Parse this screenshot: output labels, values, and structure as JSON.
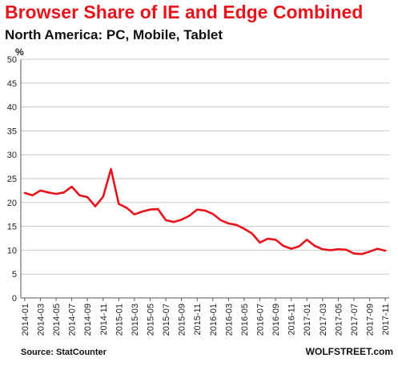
{
  "header": {
    "title": "Browser Share of IE and Edge Combined",
    "subtitle": "North America: PC, Mobile, Tablet"
  },
  "footer": {
    "source": "Source: StatCounter",
    "brand": "WOLFSTREET.com"
  },
  "chart_data": {
    "type": "line",
    "title": "Browser Share of IE and Edge Combined",
    "subtitle": "North America: PC, Mobile, Tablet",
    "ylabel": "%",
    "xlabel": "",
    "ylim": [
      0,
      50
    ],
    "yticks": [
      0,
      5,
      10,
      15,
      20,
      25,
      30,
      35,
      40,
      45,
      50
    ],
    "grid": true,
    "legend": "none",
    "line_color": "#e8141b",
    "x": [
      "2014-01",
      "2014-02",
      "2014-03",
      "2014-04",
      "2014-05",
      "2014-06",
      "2014-07",
      "2014-08",
      "2014-09",
      "2014-10",
      "2014-11",
      "2014-12",
      "2015-01",
      "2015-02",
      "2015-03",
      "2015-04",
      "2015-05",
      "2015-06",
      "2015-07",
      "2015-08",
      "2015-09",
      "2015-10",
      "2015-11",
      "2015-12",
      "2016-01",
      "2016-02",
      "2016-03",
      "2016-04",
      "2016-05",
      "2016-06",
      "2016-07",
      "2016-08",
      "2016-09",
      "2016-10",
      "2016-11",
      "2016-12",
      "2017-01",
      "2017-02",
      "2017-03",
      "2017-04",
      "2017-05",
      "2017-06",
      "2017-07",
      "2017-08",
      "2017-09",
      "2017-10",
      "2017-11"
    ],
    "x_tick_labels": [
      "2014-01",
      "2014-03",
      "2014-05",
      "2014-07",
      "2014-09",
      "2014-11",
      "2015-01",
      "2015-03",
      "2015-05",
      "2015-07",
      "2015-09",
      "2015-11",
      "2016-01",
      "2016-03",
      "2016-05",
      "2016-07",
      "2016-09",
      "2016-11",
      "2017-01",
      "2017-03",
      "2017-05",
      "2017-07",
      "2017-09",
      "2017-11"
    ],
    "series": [
      {
        "values": [
          22.0,
          21.5,
          22.5,
          22.1,
          21.8,
          22.1,
          23.3,
          21.5,
          21.1,
          19.2,
          21.2,
          27.0,
          19.7,
          18.9,
          17.5,
          18.1,
          18.5,
          18.6,
          16.3,
          15.9,
          16.4,
          17.2,
          18.5,
          18.3,
          17.6,
          16.3,
          15.6,
          15.3,
          14.5,
          13.5,
          11.6,
          12.4,
          12.2,
          10.9,
          10.3,
          10.8,
          12.2,
          10.9,
          10.2,
          10.0,
          10.2,
          10.1,
          9.3,
          9.2,
          9.7,
          10.3,
          9.9
        ]
      }
    ]
  }
}
